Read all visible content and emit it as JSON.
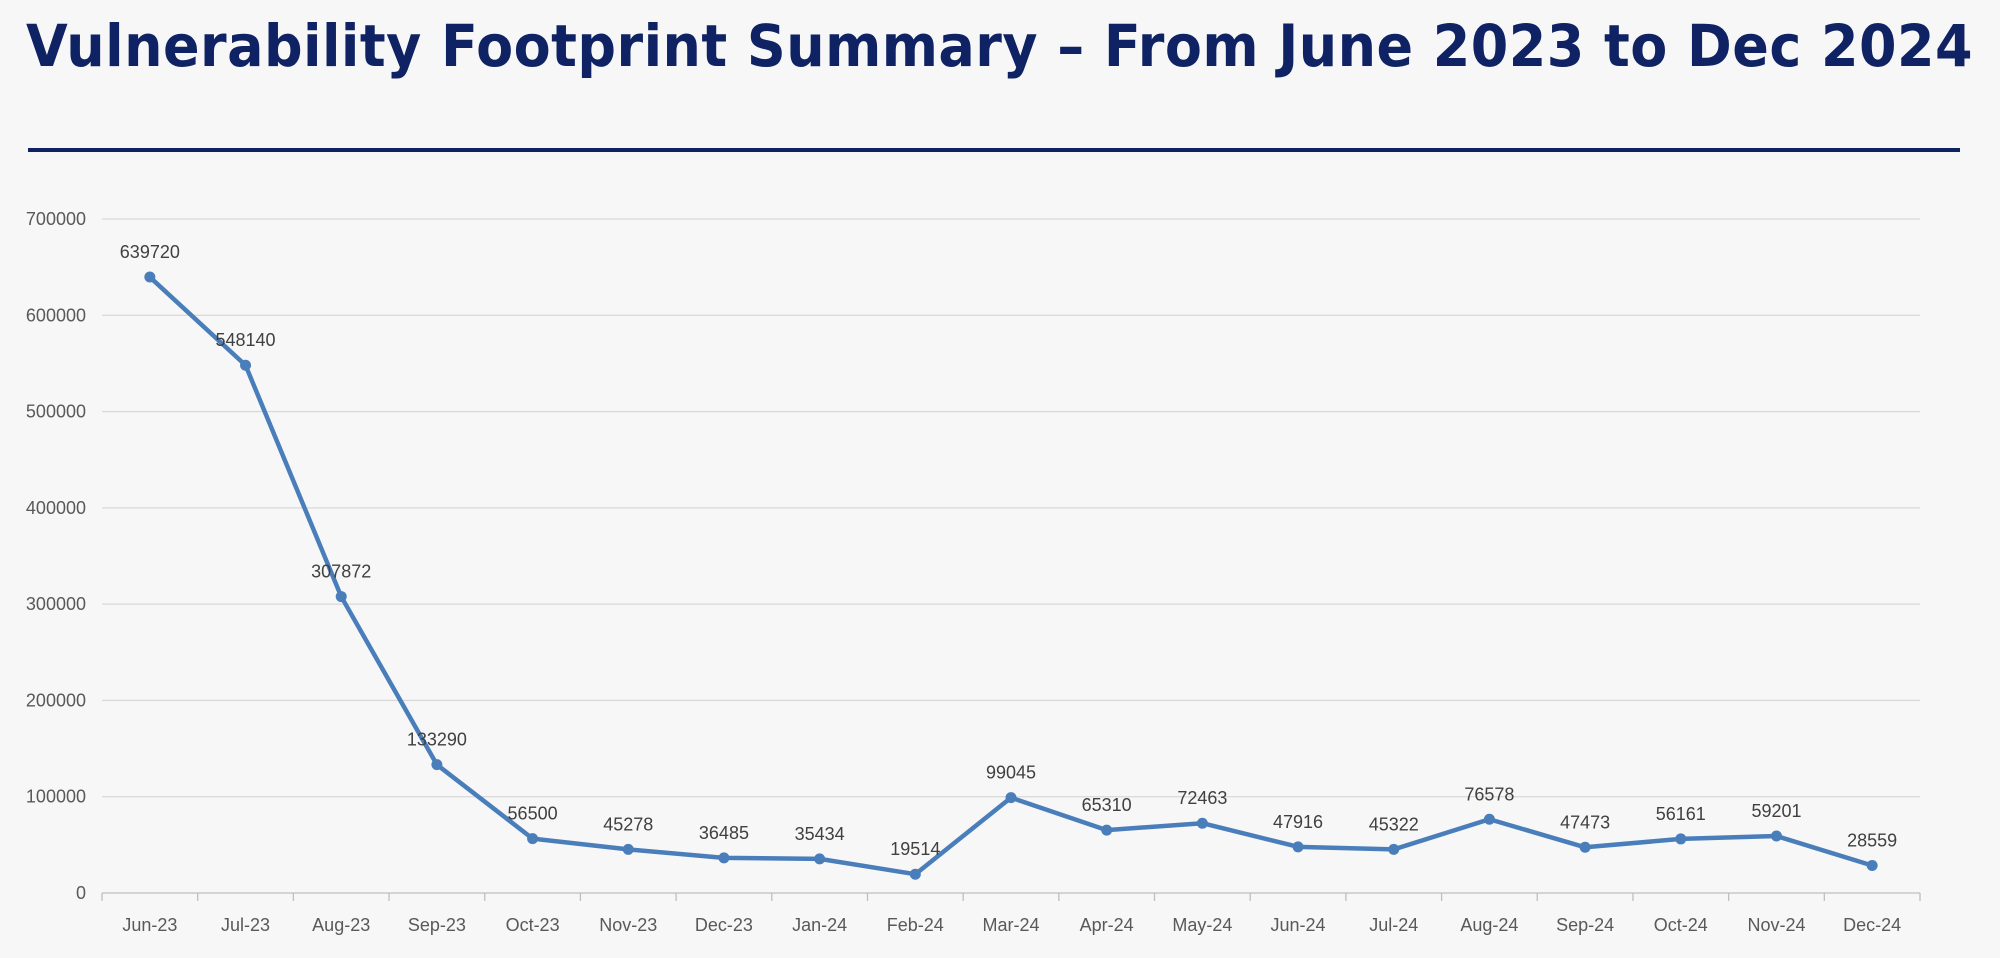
{
  "title": "Vulnerability Footprint Summary – From June 2023 to Dec 2024",
  "chart_data": {
    "type": "line",
    "title": "",
    "xlabel": "",
    "ylabel": "",
    "categories": [
      "Jun-23",
      "Jul-23",
      "Aug-23",
      "Sep-23",
      "Oct-23",
      "Nov-23",
      "Dec-23",
      "Jan-24",
      "Feb-24",
      "Mar-24",
      "Apr-24",
      "May-24",
      "Jun-24",
      "Jul-24",
      "Aug-24",
      "Sep-24",
      "Oct-24",
      "Nov-24",
      "Dec-24"
    ],
    "values": [
      639720,
      548140,
      307872,
      133290,
      56500,
      45278,
      36485,
      35434,
      19514,
      99045,
      65310,
      72463,
      47916,
      45322,
      76578,
      47473,
      56161,
      59201,
      28559
    ],
    "ylim": [
      0,
      700000
    ],
    "yticks": [
      0,
      100000,
      200000,
      300000,
      400000,
      500000,
      600000,
      700000
    ],
    "grid": true,
    "data_labels": true,
    "legend": "none",
    "line_color": "#4a7ebb",
    "marker": "circle"
  }
}
